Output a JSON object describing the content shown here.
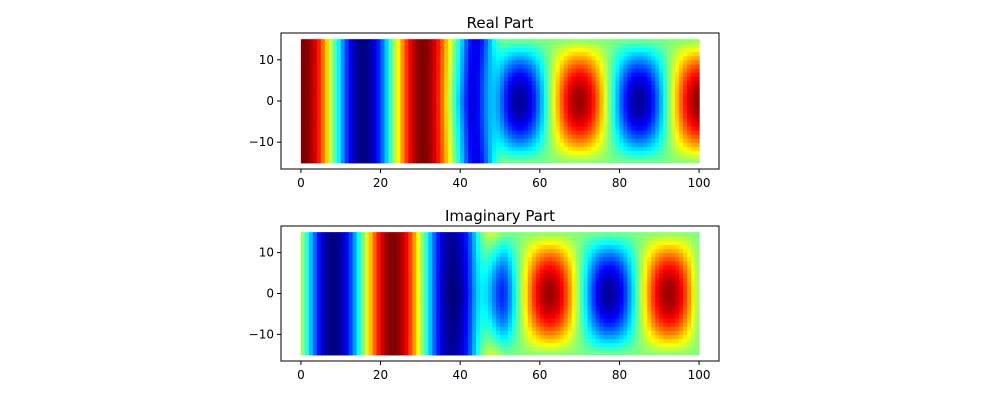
{
  "chart_data": [
    {
      "type": "heatmap",
      "title": "Real Part",
      "xlabel": "",
      "ylabel": "",
      "xlim": [
        -5,
        105
      ],
      "ylim": [
        -16.5,
        16.5
      ],
      "data_x_range": [
        0,
        100
      ],
      "data_y_range": [
        -15,
        15
      ],
      "x_ticks": [
        0,
        20,
        40,
        60,
        80,
        100
      ],
      "y_ticks": [
        -10,
        0,
        10
      ],
      "x_tick_labels": [
        "0",
        "20",
        "40",
        "60",
        "80",
        "100"
      ],
      "y_tick_labels": [
        "−10",
        "0",
        "10"
      ],
      "colormap": "jet",
      "value_range": [
        -1,
        1
      ],
      "phase_offset_deg": 0,
      "field_model": "Re(field); uniform standing wave for x<=45, lateral cos(pi*y/30) modes for x>=50, period ~30"
    },
    {
      "type": "heatmap",
      "title": "Imaginary Part",
      "xlabel": "",
      "ylabel": "",
      "xlim": [
        -5,
        105
      ],
      "ylim": [
        -16.5,
        16.5
      ],
      "data_x_range": [
        0,
        100
      ],
      "data_y_range": [
        -15,
        15
      ],
      "x_ticks": [
        0,
        20,
        40,
        60,
        80,
        100
      ],
      "y_ticks": [
        -10,
        0,
        10
      ],
      "x_tick_labels": [
        "0",
        "20",
        "40",
        "60",
        "80",
        "100"
      ],
      "y_tick_labels": [
        "−10",
        "0",
        "10"
      ],
      "colormap": "jet",
      "value_range": [
        -1,
        1
      ],
      "phase_offset_deg": 90,
      "field_model": "Im(field); same mode structure shifted by quarter period"
    }
  ]
}
